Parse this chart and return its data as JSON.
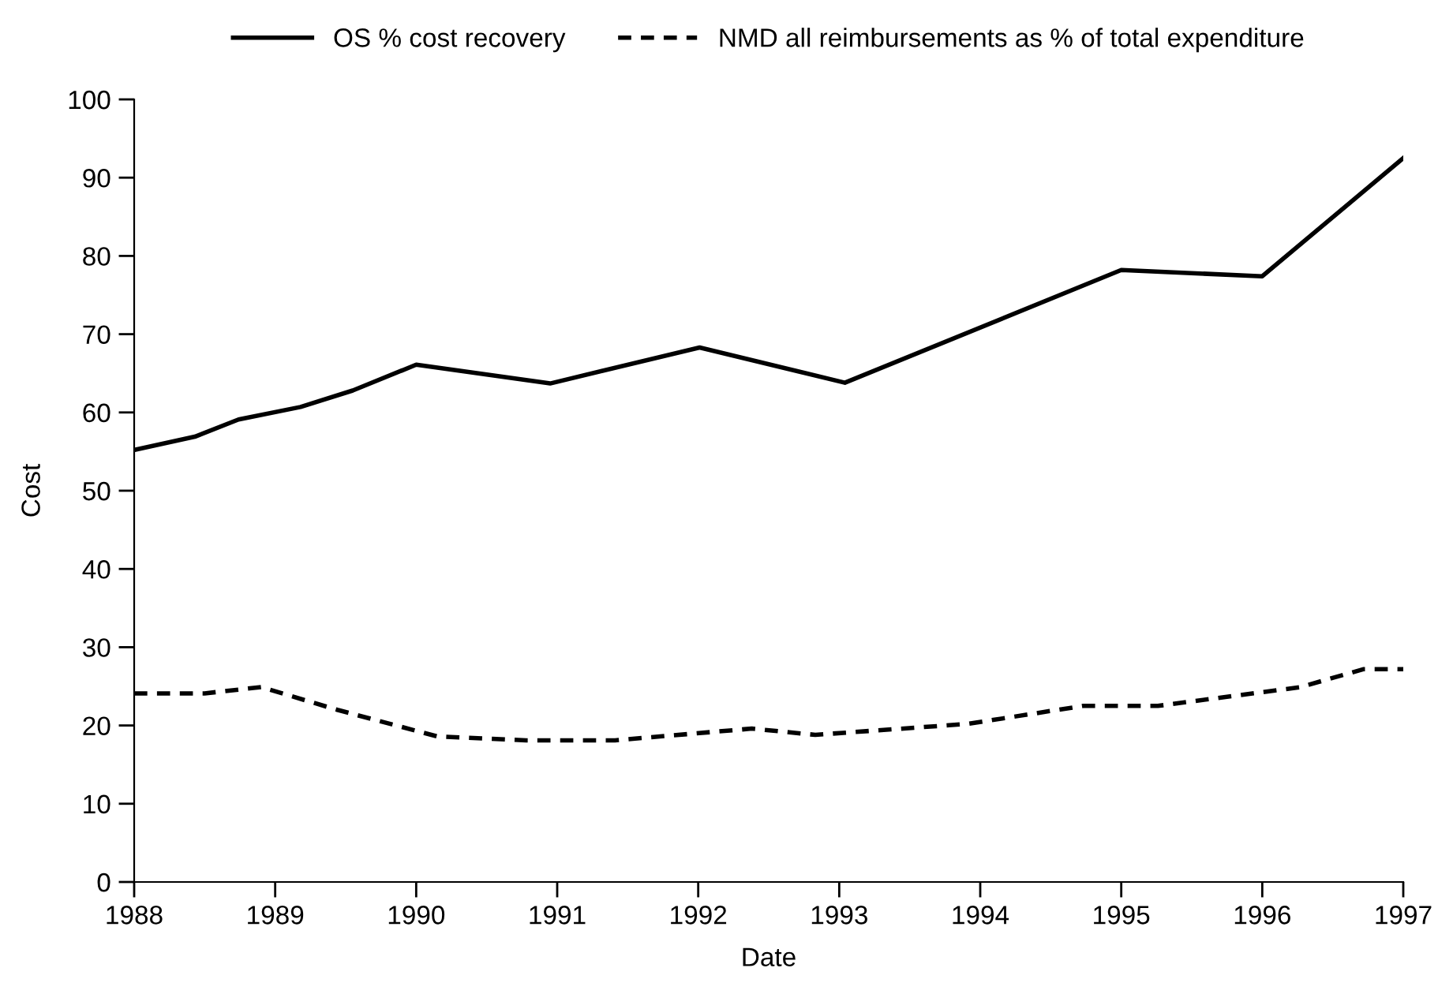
{
  "chart_data": {
    "type": "line",
    "xlabel": "Date",
    "ylabel": "Cost",
    "xlim": [
      1988,
      1997
    ],
    "xticks": [
      1988,
      1989,
      1990,
      1991,
      1992,
      1993,
      1994,
      1995,
      1996,
      1997
    ],
    "ylim": [
      0,
      100
    ],
    "yticks": [
      0,
      10,
      20,
      30,
      40,
      50,
      60,
      70,
      80,
      90,
      100
    ],
    "grid": false,
    "legend": "top",
    "series": [
      {
        "name": "OS % cost recovery",
        "color": "#000000",
        "line_style": "solid",
        "x": [
          1988,
          1988.43,
          1988.74,
          1989.18,
          1989.55,
          1990,
          1990.95,
          1992.01,
          1993.04,
          1995,
          1996,
          1997
        ],
        "values": [
          55.2,
          56.9,
          59.1,
          60.7,
          62.8,
          66.1,
          63.7,
          68.3,
          63.8,
          78.2,
          77.4,
          92.5
        ]
      },
      {
        "name": "NMD all reimbursements as % of total expenditure",
        "color": "#000000",
        "line_style": "dashed",
        "x": [
          1988,
          1988.5,
          1988.9,
          1989.44,
          1990.15,
          1990.78,
          1991.41,
          1992.38,
          1992.83,
          1993.91,
          1994.73,
          1995.26,
          1996.27,
          1996.72,
          1997
        ],
        "values": [
          24.1,
          24.1,
          24.9,
          22.0,
          18.6,
          18.1,
          18.1,
          19.6,
          18.8,
          20.2,
          22.5,
          22.5,
          24.9,
          27.2,
          27.2
        ]
      }
    ]
  }
}
